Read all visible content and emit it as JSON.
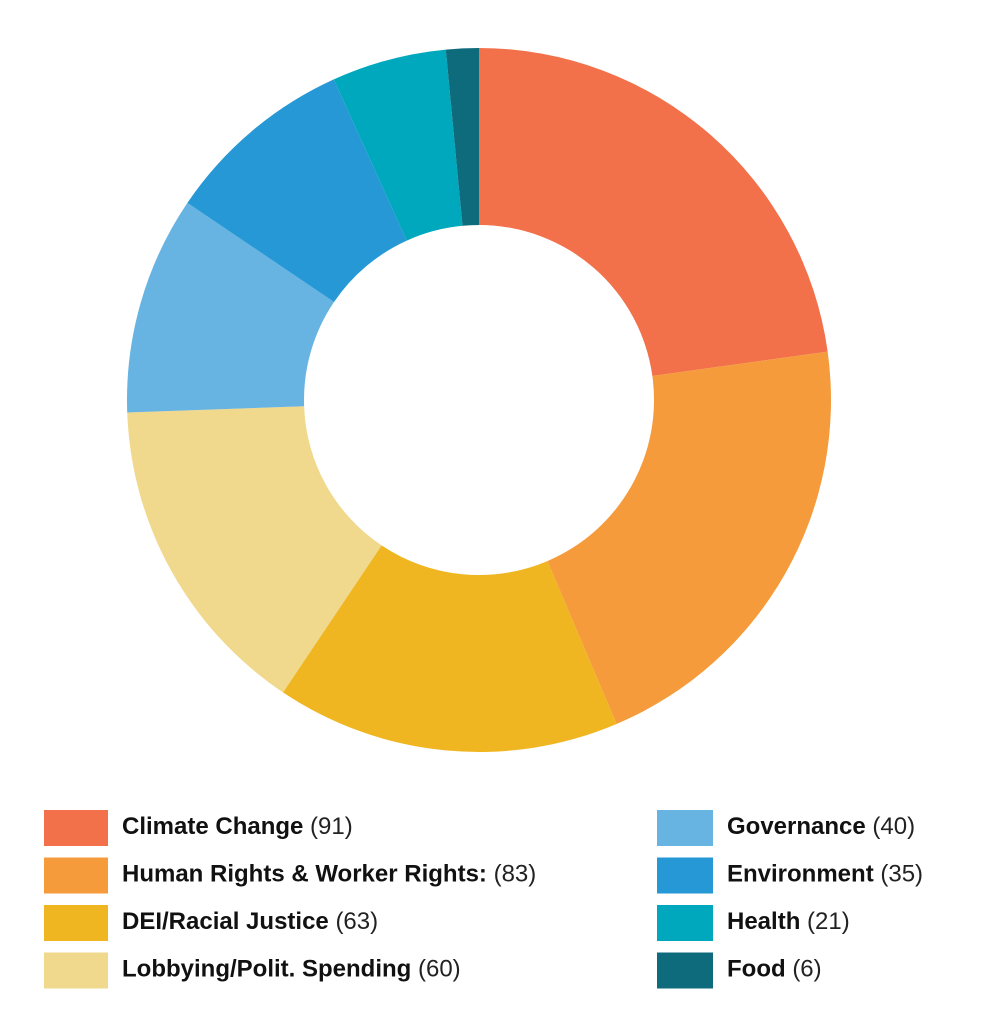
{
  "chart_data": {
    "type": "donut",
    "categories": [
      "Climate Change",
      "Human Rights & Worker Rights:",
      "DEI/Racial Justice",
      "Lobbying/Polit. Spending",
      "Governance",
      "Environment",
      "Health",
      "Food"
    ],
    "values": [
      91,
      83,
      63,
      60,
      40,
      35,
      21,
      6
    ],
    "value_labels": [
      "(91)",
      "(83)",
      "(63)",
      "(60)",
      "(40)",
      "(35)",
      "(21)",
      "(6)"
    ],
    "colors": [
      "#f2714a",
      "#f59b3b",
      "#f0b621",
      "#f0d98c",
      "#67b3e2",
      "#2698d5",
      "#00a8bd",
      "#0d6b7c"
    ]
  }
}
